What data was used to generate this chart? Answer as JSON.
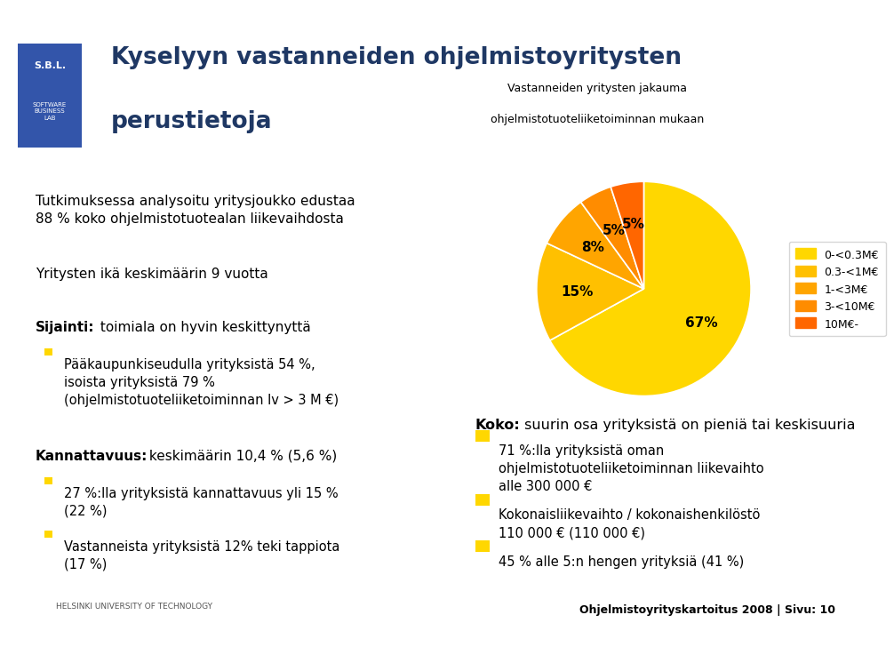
{
  "title_line1": "Kyselyyn vastanneiden ohjelmistoyritysten",
  "title_line2": "perustietoja",
  "title_color": "#1F3864",
  "pie_subtitle_line1": "Vastanneiden yritysten jakauma",
  "pie_subtitle_line2": "ohjelmistotuoteliiketoiminnan mukaan",
  "pie_values": [
    67,
    15,
    8,
    5,
    5
  ],
  "pie_labels": [
    "67%",
    "15%",
    "8%",
    "5%",
    "5%"
  ],
  "pie_colors": [
    "#FFD700",
    "#FFC000",
    "#FFA500",
    "#FF8C00",
    "#FF6600"
  ],
  "pie_legend_labels": [
    "0-<0.3M€",
    "0.3-<1M€",
    "1-<3M€",
    "3-<10M€",
    "10M€-"
  ],
  "footer_text": "Ohjelmistoyrityskartoitus 2008 | Sivu: 10",
  "bg_color": "#FFFFFF",
  "top_bar_color": "#1F3864",
  "bullet_color": "#FFD700",
  "divider_color": "#3F3F3F",
  "footer_bar_color": "#1F3864",
  "sbl_box_color": "#3355AA"
}
